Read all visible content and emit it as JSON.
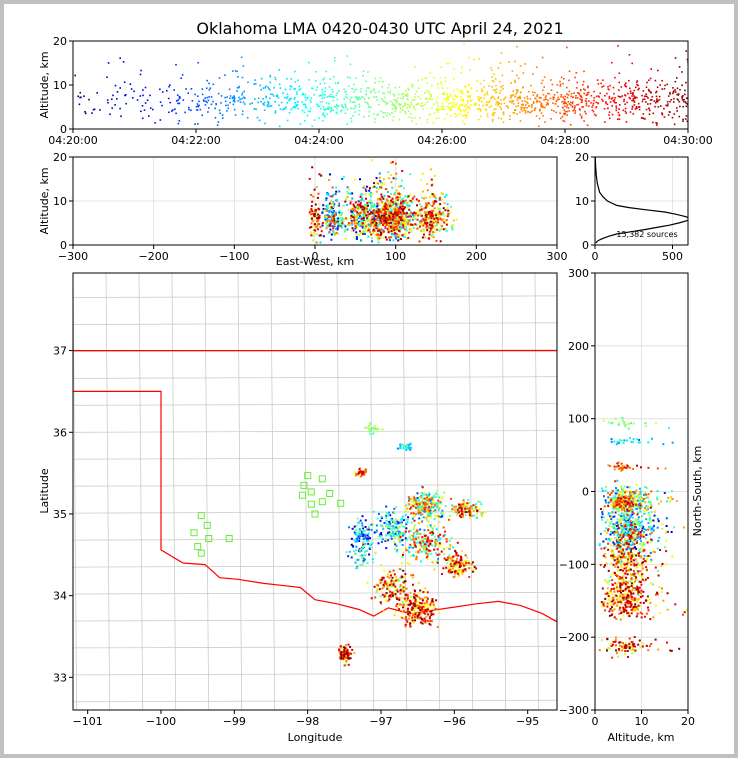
{
  "figure": {
    "title": "Oklahoma LMA 0420-0430 UTC April 24, 2021"
  },
  "chart_data": [
    {
      "id": "time_height",
      "type": "scatter",
      "title": "",
      "xlabel": "",
      "ylabel": "Altitude, km",
      "xticks": [
        "04:20:00",
        "04:22:00",
        "04:24:00",
        "04:26:00",
        "04:28:00",
        "04:30:00"
      ],
      "xlim_minutes": [
        0,
        10
      ],
      "ylim": [
        0,
        20
      ],
      "yticks": [
        "0",
        "10",
        "20"
      ],
      "colormap": "jet (by time)",
      "series_description": "VHF sources colored blue to dark red with increasing time; most sources 3-12 km altitude"
    },
    {
      "id": "ew_altitude",
      "type": "scatter",
      "xlabel": "East-West, km",
      "ylabel": "Altitude, km",
      "xlim": [
        -300,
        300
      ],
      "xticks": [
        "−300",
        "−200",
        "−100",
        "0",
        "100",
        "200",
        "300"
      ],
      "ylim": [
        0,
        20
      ],
      "yticks": [
        "0",
        "10",
        "20"
      ],
      "x_extent_of_sources": [
        0,
        190
      ]
    },
    {
      "id": "altitude_histogram",
      "type": "line",
      "xlim": [
        0,
        600
      ],
      "xticks": [
        "0",
        "500"
      ],
      "ylim": [
        0,
        20
      ],
      "yticks": [
        "0",
        "10",
        "20"
      ],
      "annotation": "15,382 sources",
      "profile": [
        {
          "alt": 0.5,
          "count": 5
        },
        {
          "alt": 1.0,
          "count": 20
        },
        {
          "alt": 1.5,
          "count": 50
        },
        {
          "alt": 2.0,
          "count": 90
        },
        {
          "alt": 2.5,
          "count": 140
        },
        {
          "alt": 3.0,
          "count": 230
        },
        {
          "alt": 3.5,
          "count": 320
        },
        {
          "alt": 4.0,
          "count": 400
        },
        {
          "alt": 4.5,
          "count": 480
        },
        {
          "alt": 5.0,
          "count": 540
        },
        {
          "alt": 5.5,
          "count": 590
        },
        {
          "alt": 6.0,
          "count": 620
        },
        {
          "alt": 6.5,
          "count": 580
        },
        {
          "alt": 7.0,
          "count": 520
        },
        {
          "alt": 7.5,
          "count": 450
        },
        {
          "alt": 8.0,
          "count": 330
        },
        {
          "alt": 8.5,
          "count": 220
        },
        {
          "alt": 9.0,
          "count": 140
        },
        {
          "alt": 10.0,
          "count": 80
        },
        {
          "alt": 11.0,
          "count": 50
        },
        {
          "alt": 12.0,
          "count": 30
        },
        {
          "alt": 14.0,
          "count": 15
        },
        {
          "alt": 16.0,
          "count": 8
        },
        {
          "alt": 18.0,
          "count": 4
        },
        {
          "alt": 20.0,
          "count": 2
        }
      ]
    },
    {
      "id": "plan_view",
      "type": "scatter",
      "xlabel": "Longitude",
      "ylabel": "Latitude",
      "xlim": [
        -101.2,
        -94.6
      ],
      "xticks": [
        "−101",
        "−100",
        "−99",
        "−98",
        "−97",
        "−96",
        "−95"
      ],
      "ylim": [
        32.6,
        37.95
      ],
      "yticks": [
        "33",
        "34",
        "35",
        "36",
        "37"
      ],
      "station_markers": [
        {
          "lon": -99.45,
          "lat": 34.98
        },
        {
          "lon": -99.55,
          "lat": 34.77
        },
        {
          "lon": -99.37,
          "lat": 34.86
        },
        {
          "lon": -99.5,
          "lat": 34.6
        },
        {
          "lon": -99.35,
          "lat": 34.7
        },
        {
          "lon": -99.45,
          "lat": 34.52
        },
        {
          "lon": -99.07,
          "lat": 34.7
        },
        {
          "lon": -98.0,
          "lat": 35.47
        },
        {
          "lon": -98.05,
          "lat": 35.35
        },
        {
          "lon": -97.8,
          "lat": 35.43
        },
        {
          "lon": -97.95,
          "lat": 35.27
        },
        {
          "lon": -98.07,
          "lat": 35.23
        },
        {
          "lon": -97.7,
          "lat": 35.25
        },
        {
          "lon": -97.8,
          "lat": 35.15
        },
        {
          "lon": -97.95,
          "lat": 35.12
        },
        {
          "lon": -97.55,
          "lat": 35.13
        },
        {
          "lon": -97.9,
          "lat": 35.0
        }
      ],
      "state_border_color": "#ff0000",
      "county_line_color": "#cccccc"
    },
    {
      "id": "altitude_ns",
      "type": "scatter",
      "xlabel": "Altitude, km",
      "ylabel": "North-South, km",
      "xlim": [
        0,
        20
      ],
      "xticks": [
        "0",
        "10",
        "20"
      ],
      "ylim": [
        -300,
        300
      ],
      "yticks": [
        "−300",
        "−200",
        "−100",
        "0",
        "100",
        "200",
        "300"
      ]
    }
  ]
}
